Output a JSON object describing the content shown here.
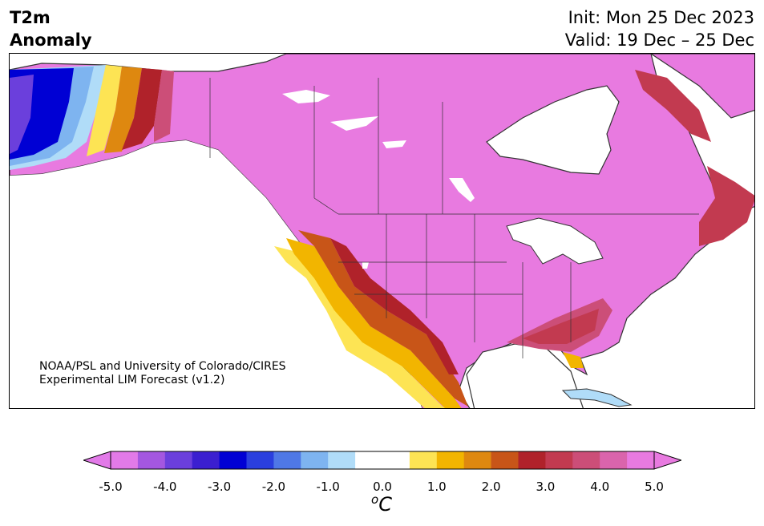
{
  "header": {
    "title_line1": "T2m",
    "title_line2": "Anomaly",
    "init": "Init: Mon 25 Dec 2023",
    "valid": "Valid: 19 Dec – 25 Dec"
  },
  "credit": {
    "line1": "NOAA/PSL and University of Colorado/CIRES",
    "line2": "Experimental LIM Forecast (v1.2)"
  },
  "colorbar": {
    "unit_base": "C",
    "unit_sup": "o",
    "ticks": [
      "-5.0",
      "-4.0",
      "-3.0",
      "-2.0",
      "-1.0",
      "0.0",
      "1.0",
      "2.0",
      "3.0",
      "4.0",
      "5.0"
    ],
    "min_color": "#e27ae8",
    "max_color": "#e87ae0",
    "colors": [
      "#e27ae8",
      "#a457e0",
      "#6b3fdc",
      "#3b1fd0",
      "#0000d4",
      "#2a3fde",
      "#4f78e6",
      "#7eb4f0",
      "#b0dcf8",
      "#ffffff",
      "#ffffff",
      "#fde454",
      "#f2b500",
      "#de8810",
      "#c85518",
      "#b0222a",
      "#c23a50",
      "#cc4e78",
      "#da64ac",
      "#e87ae0"
    ]
  },
  "map": {
    "land_color": "#e87ae0",
    "water_color": "#ffffff",
    "lake_color": "#ffffff",
    "coast_color": "#333333"
  }
}
